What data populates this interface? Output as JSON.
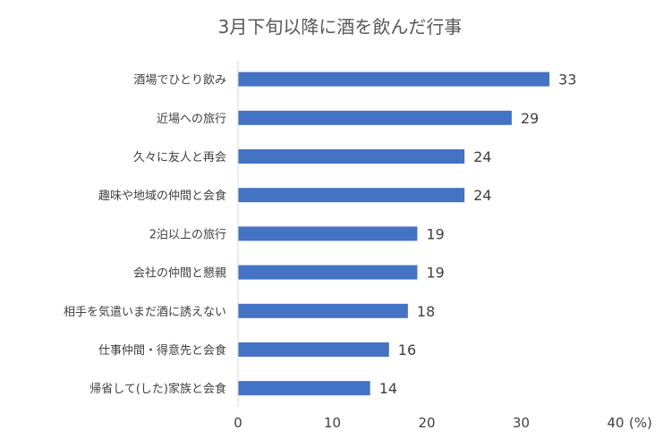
{
  "chart_data": {
    "type": "bar",
    "orientation": "horizontal",
    "title": "3月下旬以降に酒を飲んだ行事",
    "unit_label": "(%)",
    "categories": [
      "酒場でひとり飲み",
      "近場への旅行",
      "久々に友人と再会",
      "趣味や地域の仲間と会食",
      "2泊以上の旅行",
      "会社の仲間と懇親",
      "相手を気遣いまだ酒に誘えない",
      "仕事仲間・得意先と会食",
      "帰省して(した)家族と会食"
    ],
    "values": [
      33,
      29,
      24,
      24,
      19,
      19,
      18,
      16,
      14
    ],
    "xlim": [
      0,
      40
    ],
    "xticks": [
      0,
      10,
      20,
      30,
      40
    ],
    "bar_color": "#4472C4",
    "grid": false,
    "legend": "none"
  }
}
